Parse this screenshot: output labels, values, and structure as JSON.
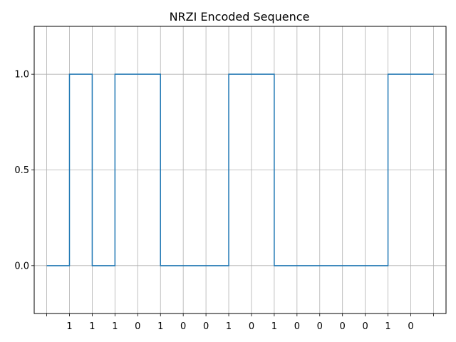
{
  "chart_data": {
    "type": "line",
    "drawstyle": "steps-post",
    "title": "NRZI Encoded Sequence",
    "xlabel": "",
    "ylabel": "",
    "x": [
      0,
      1,
      2,
      3,
      4,
      5,
      6,
      7,
      8,
      9,
      10,
      11,
      12,
      13,
      14,
      15,
      16,
      17
    ],
    "bits": [
      "",
      "1",
      "1",
      "1",
      "0",
      "1",
      "0",
      "0",
      "1",
      "0",
      "1",
      "0",
      "0",
      "0",
      "0",
      "1",
      "0",
      ""
    ],
    "series": [
      {
        "values": [
          0,
          1,
          0,
          1,
          1,
          0,
          0,
          0,
          1,
          1,
          0,
          0,
          0,
          0,
          0,
          1,
          1,
          1
        ],
        "color": "#1f77b4"
      }
    ],
    "xlim": [
      -0.55,
      17.55
    ],
    "ylim": [
      -0.25,
      1.25
    ],
    "yticks": [
      "0.0",
      "0.5",
      "1.0"
    ],
    "ytick_values": [
      0,
      0.5,
      1
    ],
    "grid": true,
    "grid_color": "#b0b0b0"
  }
}
